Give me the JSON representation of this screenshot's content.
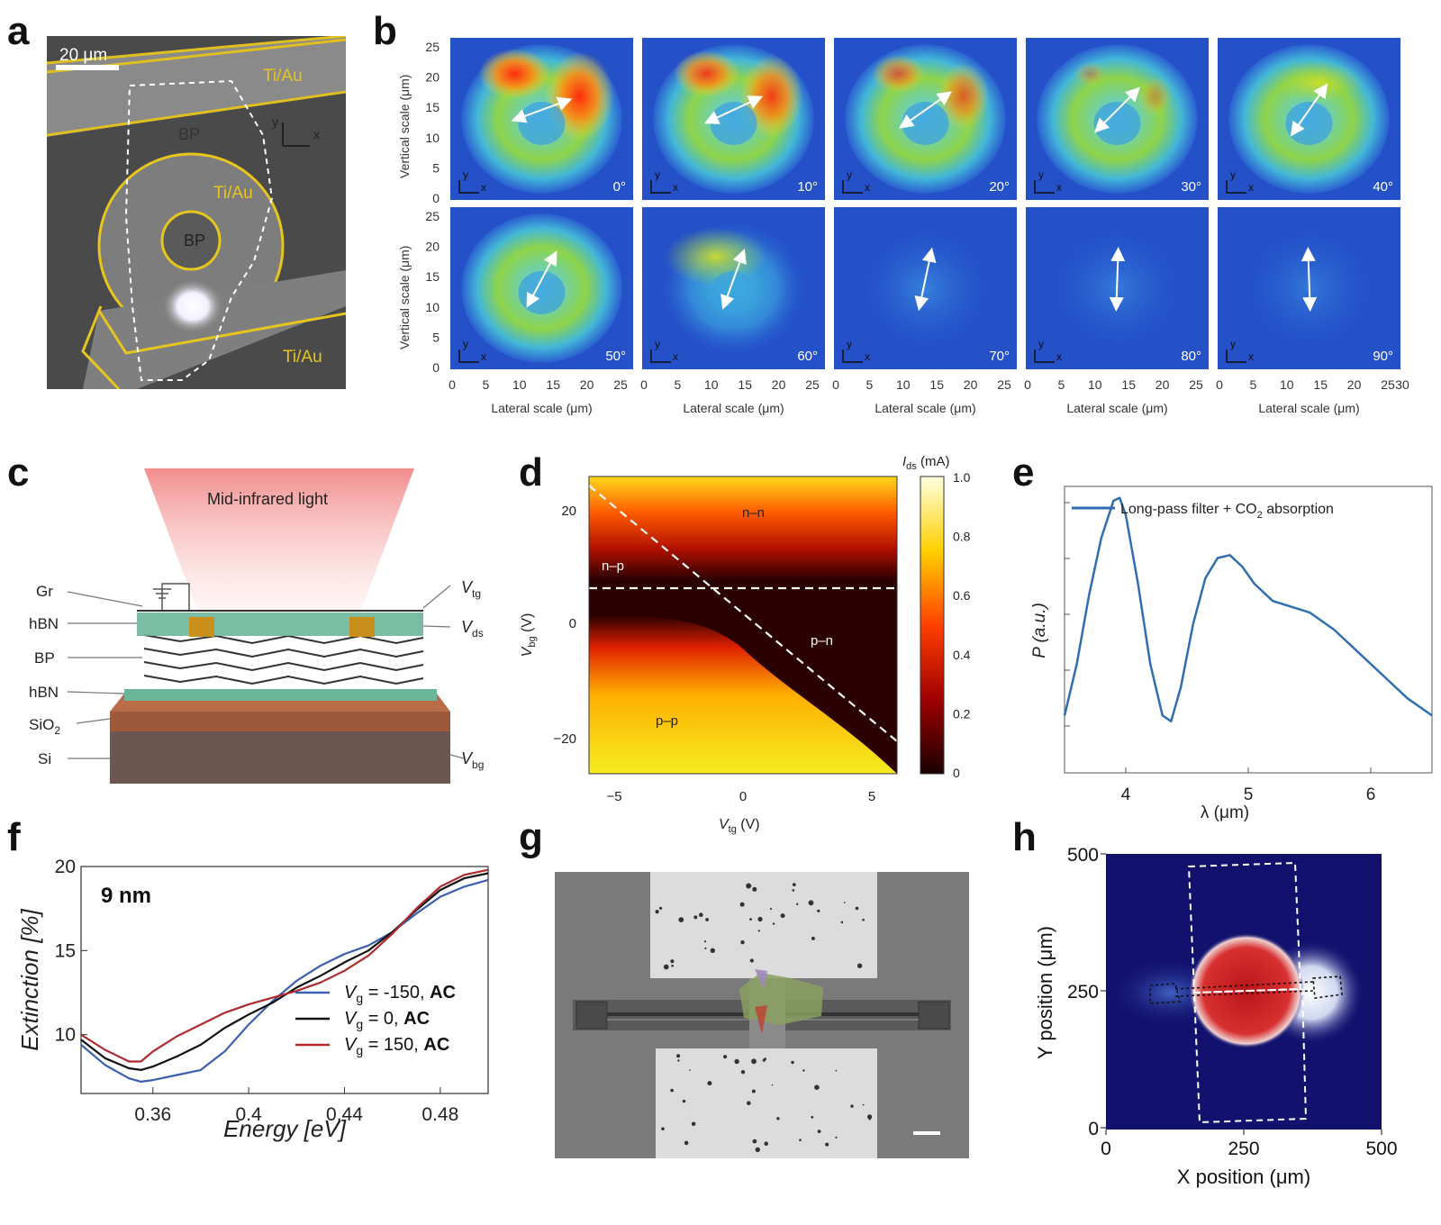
{
  "panels": {
    "a": {
      "label": "a",
      "scalebar": "20 μm",
      "tiau1": "Ti/Au",
      "tiau2": "Ti/Au",
      "tiau3": "Ti/Au",
      "bp1": "BP",
      "bp2": "BP",
      "ax_x": "x",
      "ax_y": "y"
    },
    "b": {
      "label": "b",
      "ylabel": "Vertical scale (μm)",
      "xlabel": "Lateral scale (μm)",
      "angles": [
        "0°",
        "10°",
        "20°",
        "30°",
        "40°",
        "50°",
        "60°",
        "70°",
        "80°",
        "90°"
      ],
      "ax_x": "x",
      "ax_y": "y",
      "yticks": [
        "0",
        "5",
        "10",
        "15",
        "20",
        "25"
      ],
      "xticks": [
        "0",
        "5",
        "10",
        "15",
        "20",
        "25"
      ],
      "xtick_last": "30"
    },
    "c": {
      "label": "c",
      "light": "Mid-infrared light",
      "gr": "Gr",
      "hbn1": "hBN",
      "bp": "BP",
      "hbn2": "hBN",
      "sio2": "SiO",
      "sio2_sub": "2",
      "si": "Si",
      "vtg": "V",
      "vtg_sub": "tg",
      "vds": "V",
      "vds_sub": "ds",
      "vbg": "V",
      "vbg_sub": "bg"
    },
    "d": {
      "label": "d",
      "xlabel_main": "V",
      "xlabel_sub": "tg",
      "xlabel_unit": " (V)",
      "ylabel_main": "V",
      "ylabel_sub": "bg",
      "ylabel_unit": " (V)",
      "cb_title_main": "I",
      "cb_title_sub": "ds",
      "cb_title_unit": " (mA)",
      "xticks": [
        "−5",
        "0",
        "5"
      ],
      "yticks": [
        "20",
        "0",
        "−20"
      ],
      "cbticks": [
        "1.0",
        "0.8",
        "0.6",
        "0.4",
        "0.2",
        "0"
      ],
      "regions": {
        "nn": "n–n",
        "np": "n–p",
        "pn": "p–n",
        "pp": "p–p"
      }
    },
    "e": {
      "label": "e",
      "legend_main": "Long-pass filter + CO",
      "legend_sub": "2",
      "legend_tail": " absorption",
      "ylabel": "P (a.u.)",
      "xlabel": "λ (μm)",
      "xticks": [
        "4",
        "5",
        "6"
      ]
    },
    "f": {
      "label": "f",
      "thickness": "9 nm",
      "ylabel": "Extinction [%]",
      "xlabel": "Energy [eV]",
      "xticks": [
        "0.36",
        "0.4",
        "0.44",
        "0.48"
      ],
      "yticks": [
        "10",
        "15",
        "20"
      ],
      "legend": [
        {
          "v": "V",
          "sub": "g",
          "text": " = -150, ",
          "bold": "AC"
        },
        {
          "v": "V",
          "sub": "g",
          "text": " = 0, ",
          "bold": "AC"
        },
        {
          "v": "V",
          "sub": "g",
          "text": " = 150, ",
          "bold": "AC"
        }
      ]
    },
    "g": {
      "label": "g"
    },
    "h": {
      "label": "h",
      "ylabel": "Y position (μm)",
      "xlabel": "X position (μm)",
      "xticks": [
        "0",
        "250",
        "500"
      ],
      "yticks": [
        "500",
        "250",
        "0"
      ]
    }
  },
  "chart_data": [
    {
      "type": "line",
      "panel": "e",
      "title": "",
      "xlabel": "λ (μm)",
      "ylabel": "P (a.u.)",
      "xlim": [
        3.5,
        6.5
      ],
      "series": [
        {
          "name": "Long-pass filter + CO2 absorption",
          "x": [
            3.5,
            3.6,
            3.7,
            3.8,
            3.9,
            3.95,
            4.0,
            4.1,
            4.2,
            4.3,
            4.37,
            4.45,
            4.55,
            4.65,
            4.75,
            4.85,
            4.95,
            5.05,
            5.2,
            5.35,
            5.5,
            5.7,
            5.9,
            6.1,
            6.3,
            6.5
          ],
          "y": [
            0.2,
            0.38,
            0.62,
            0.82,
            0.95,
            0.96,
            0.9,
            0.66,
            0.38,
            0.2,
            0.18,
            0.3,
            0.52,
            0.68,
            0.75,
            0.76,
            0.72,
            0.66,
            0.6,
            0.58,
            0.56,
            0.5,
            0.42,
            0.34,
            0.26,
            0.2
          ]
        }
      ],
      "color": "#2f6eb0"
    },
    {
      "type": "line",
      "panel": "f",
      "title": "",
      "xlabel": "Energy [eV]",
      "ylabel": "Extinction [%]",
      "xlim": [
        0.33,
        0.5
      ],
      "ylim": [
        6.5,
        20
      ],
      "series": [
        {
          "name": "Vg = -150, AC",
          "color": "#3a5fb0",
          "x": [
            0.33,
            0.34,
            0.35,
            0.355,
            0.36,
            0.37,
            0.38,
            0.39,
            0.4,
            0.41,
            0.42,
            0.43,
            0.44,
            0.45,
            0.46,
            0.47,
            0.48,
            0.49,
            0.5
          ],
          "y": [
            9.4,
            8.2,
            7.4,
            7.2,
            7.3,
            7.6,
            7.9,
            9.0,
            10.6,
            12.0,
            13.2,
            14.1,
            14.8,
            15.3,
            16.1,
            17.2,
            18.2,
            18.8,
            19.2
          ]
        },
        {
          "name": "Vg = 0, AC",
          "color": "#111111",
          "x": [
            0.33,
            0.34,
            0.35,
            0.355,
            0.36,
            0.37,
            0.38,
            0.39,
            0.4,
            0.41,
            0.42,
            0.43,
            0.44,
            0.45,
            0.46,
            0.47,
            0.48,
            0.49,
            0.5
          ],
          "y": [
            9.7,
            8.6,
            8.0,
            7.9,
            8.1,
            8.7,
            9.4,
            10.4,
            11.2,
            11.9,
            12.8,
            13.5,
            14.3,
            15.0,
            16.1,
            17.4,
            18.6,
            19.3,
            19.6
          ]
        },
        {
          "name": "Vg = 150, AC",
          "color": "#b02a2a",
          "x": [
            0.33,
            0.34,
            0.35,
            0.355,
            0.36,
            0.37,
            0.38,
            0.39,
            0.4,
            0.41,
            0.42,
            0.43,
            0.44,
            0.45,
            0.46,
            0.47,
            0.48,
            0.49,
            0.5
          ],
          "y": [
            10.0,
            9.1,
            8.4,
            8.4,
            9.0,
            9.9,
            10.6,
            11.3,
            11.8,
            12.2,
            12.6,
            13.1,
            13.8,
            14.7,
            16.0,
            17.5,
            18.8,
            19.5,
            19.8
          ]
        }
      ]
    }
  ]
}
